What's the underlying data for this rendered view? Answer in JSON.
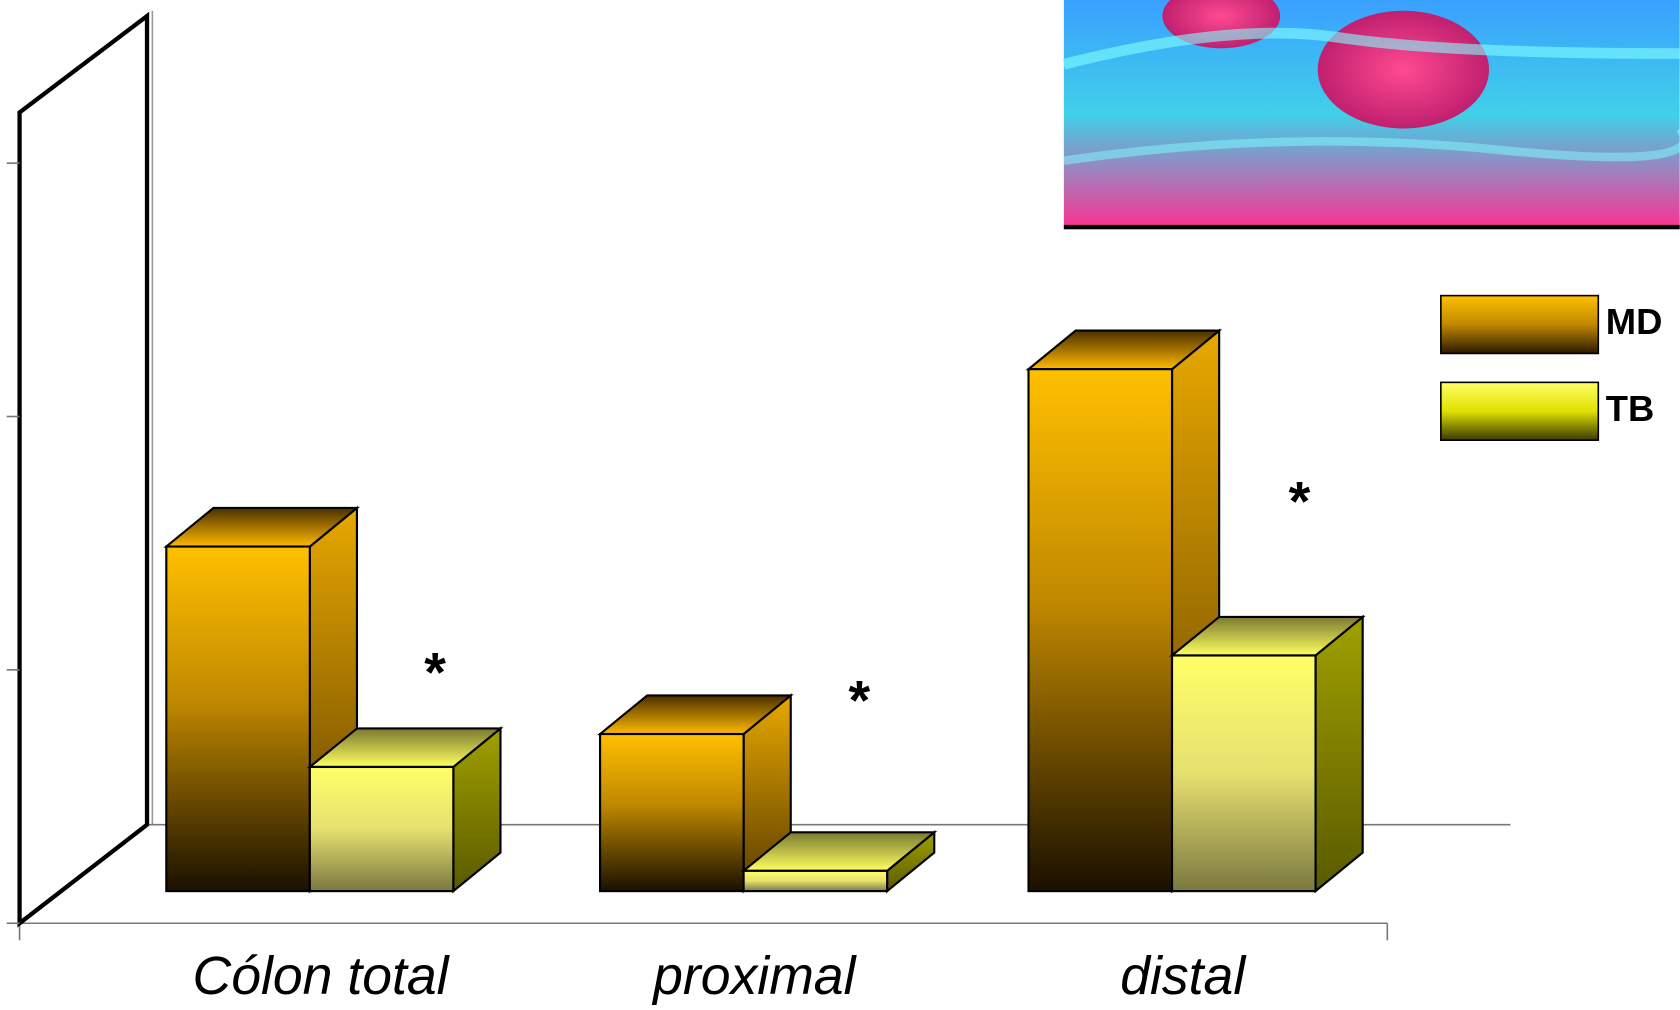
{
  "chart_data": {
    "type": "bar3d",
    "categories": [
      "Cólon total",
      "proximal",
      "distal"
    ],
    "series": [
      {
        "name": "MD",
        "color": "#ffc000",
        "values": [
          1.36,
          0.62,
          2.06
        ]
      },
      {
        "name": "TB",
        "color": "#ffff66",
        "values": [
          0.49,
          0.08,
          0.93
        ]
      }
    ],
    "annotations": [
      "*",
      "*",
      "*"
    ],
    "ylim": [
      0,
      3.2
    ],
    "yticks": [
      0,
      1,
      2,
      3
    ],
    "legend": "right"
  }
}
